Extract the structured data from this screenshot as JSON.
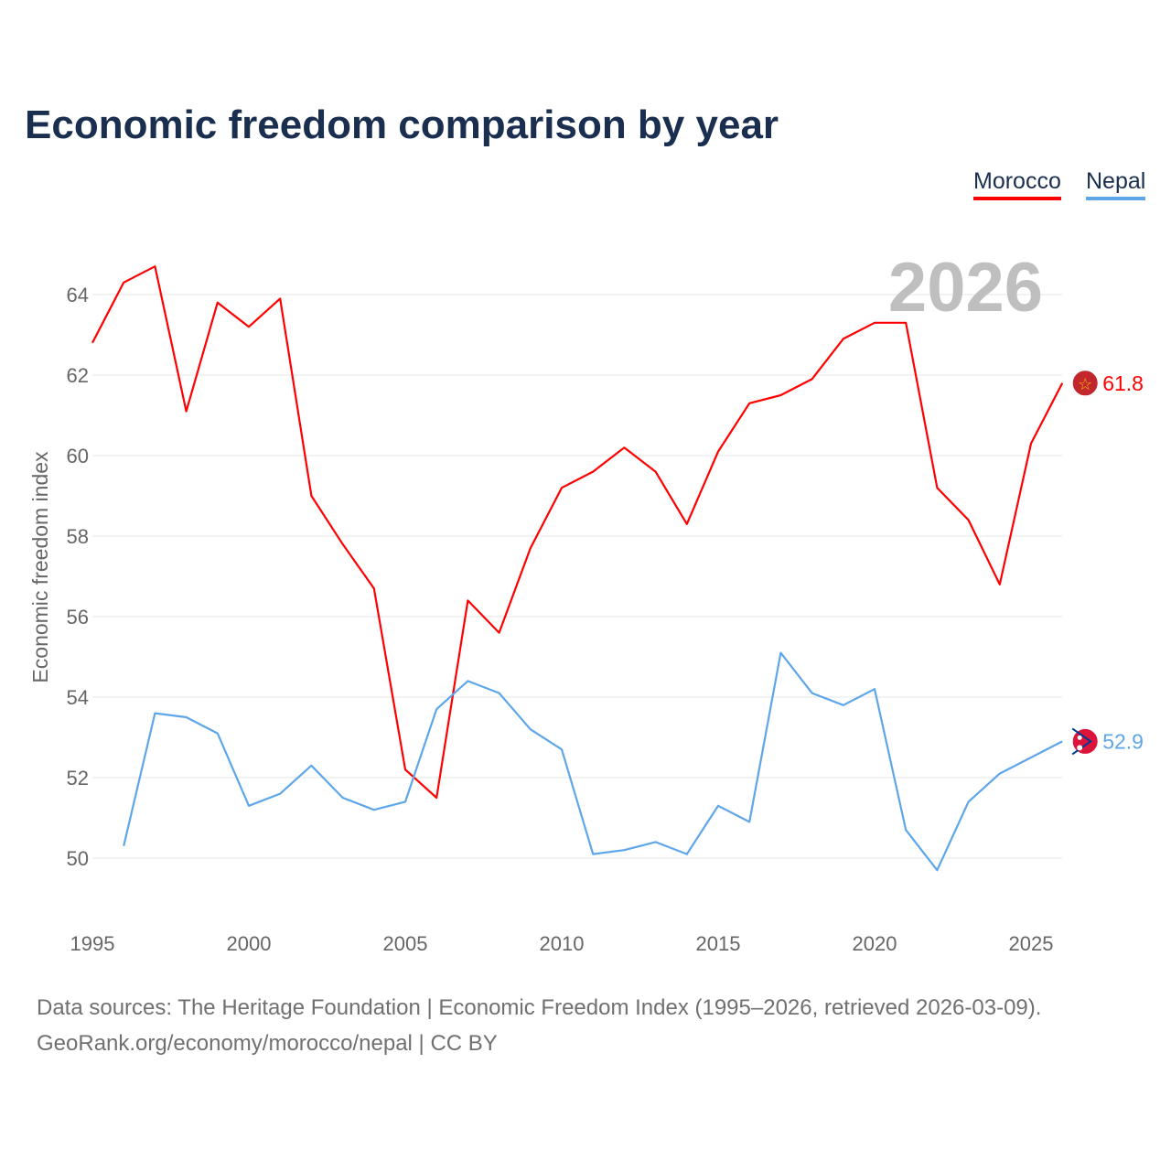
{
  "title": "Economic freedom comparison by year",
  "source_line1": "Data sources: The Heritage Foundation | Economic Freedom Index (1995–2026, retrieved 2026-03-09).",
  "source_line2": "GeoRank.org/economy/morocco/nepal | CC BY",
  "chart_data": {
    "type": "line",
    "title": "Economic freedom comparison by year",
    "xlabel": "",
    "ylabel": "Economic freedom index",
    "year_watermark": "2026",
    "xlim": [
      1995,
      2026
    ],
    "ylim": [
      49,
      65.5
    ],
    "xticks": [
      1995,
      2000,
      2005,
      2010,
      2015,
      2020,
      2025
    ],
    "yticks": [
      50,
      52,
      54,
      56,
      58,
      60,
      62,
      64
    ],
    "grid": true,
    "legend_position": "top-right",
    "series": [
      {
        "name": "Morocco",
        "color": "#ff0000",
        "end_label": "61.8",
        "x": [
          1995,
          1996,
          1997,
          1998,
          1999,
          2000,
          2001,
          2002,
          2003,
          2004,
          2005,
          2006,
          2007,
          2008,
          2009,
          2010,
          2011,
          2012,
          2013,
          2014,
          2015,
          2016,
          2017,
          2018,
          2019,
          2020,
          2021,
          2022,
          2023,
          2024,
          2025,
          2026
        ],
        "values": [
          62.8,
          64.3,
          64.7,
          61.1,
          63.8,
          63.2,
          63.9,
          59.0,
          57.8,
          56.7,
          52.2,
          51.5,
          56.4,
          55.6,
          57.7,
          59.2,
          59.6,
          60.2,
          59.6,
          58.3,
          60.1,
          61.3,
          61.5,
          61.9,
          62.9,
          63.3,
          63.3,
          59.2,
          58.4,
          56.8,
          60.3,
          61.8
        ]
      },
      {
        "name": "Nepal",
        "color": "#5ea6ea",
        "end_label": "52.9",
        "x": [
          1996,
          1997,
          1998,
          1999,
          2000,
          2001,
          2002,
          2003,
          2004,
          2005,
          2006,
          2007,
          2008,
          2009,
          2010,
          2011,
          2012,
          2013,
          2014,
          2015,
          2016,
          2017,
          2018,
          2019,
          2020,
          2021,
          2022,
          2023,
          2024,
          2025,
          2026
        ],
        "values": [
          50.3,
          53.6,
          53.5,
          53.1,
          51.3,
          51.6,
          52.3,
          51.5,
          51.2,
          51.4,
          53.7,
          54.4,
          54.1,
          53.2,
          52.7,
          50.1,
          50.2,
          50.4,
          50.1,
          51.3,
          50.9,
          55.1,
          54.1,
          53.8,
          54.2,
          50.7,
          49.7,
          51.4,
          52.1,
          52.5,
          52.9
        ]
      }
    ]
  }
}
